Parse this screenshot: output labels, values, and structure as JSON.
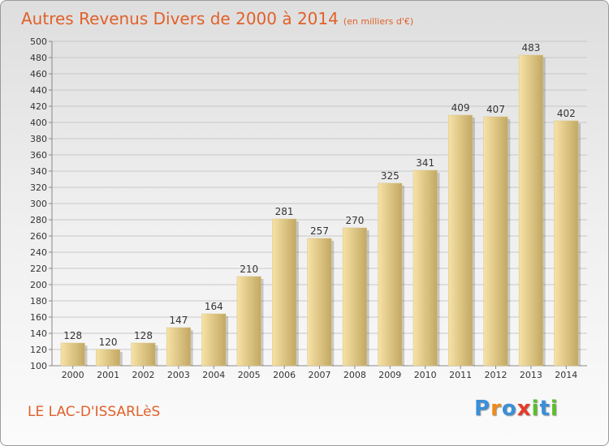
{
  "chart_data": {
    "type": "bar",
    "title": "Autres Revenus Divers de 2000 à 2014",
    "subtitle": "(en milliers d'€)",
    "categories": [
      "2000",
      "2001",
      "2002",
      "2003",
      "2004",
      "2005",
      "2006",
      "2007",
      "2008",
      "2009",
      "2010",
      "2011",
      "2012",
      "2013",
      "2014"
    ],
    "values": [
      128,
      120,
      128,
      147,
      164,
      210,
      281,
      257,
      270,
      325,
      341,
      409,
      407,
      483,
      402
    ],
    "ylim": [
      100,
      500
    ],
    "yticks": [
      100,
      120,
      140,
      160,
      180,
      200,
      220,
      240,
      260,
      280,
      300,
      320,
      340,
      360,
      380,
      400,
      420,
      440,
      460,
      480,
      500
    ],
    "grid": true,
    "bar_color_light": "#f7e2a6",
    "bar_color_dark": "#c2a862"
  },
  "commune": "LE LAC-D'ISSARLèS",
  "logo": {
    "text": "Proxiti",
    "letters": [
      {
        "ch": "P",
        "color": "#3a8fd8"
      },
      {
        "ch": "r",
        "color": "#f08a1c"
      },
      {
        "ch": "o",
        "color": "#3a8fd8"
      },
      {
        "ch": "x",
        "color": "#e63a2a"
      },
      {
        "ch": "i",
        "color": "#5bbf2a"
      },
      {
        "ch": "t",
        "color": "#3a8fd8"
      },
      {
        "ch": "i",
        "color": "#5bbf2a"
      }
    ]
  },
  "colors": {
    "accent": "#e0612a"
  }
}
